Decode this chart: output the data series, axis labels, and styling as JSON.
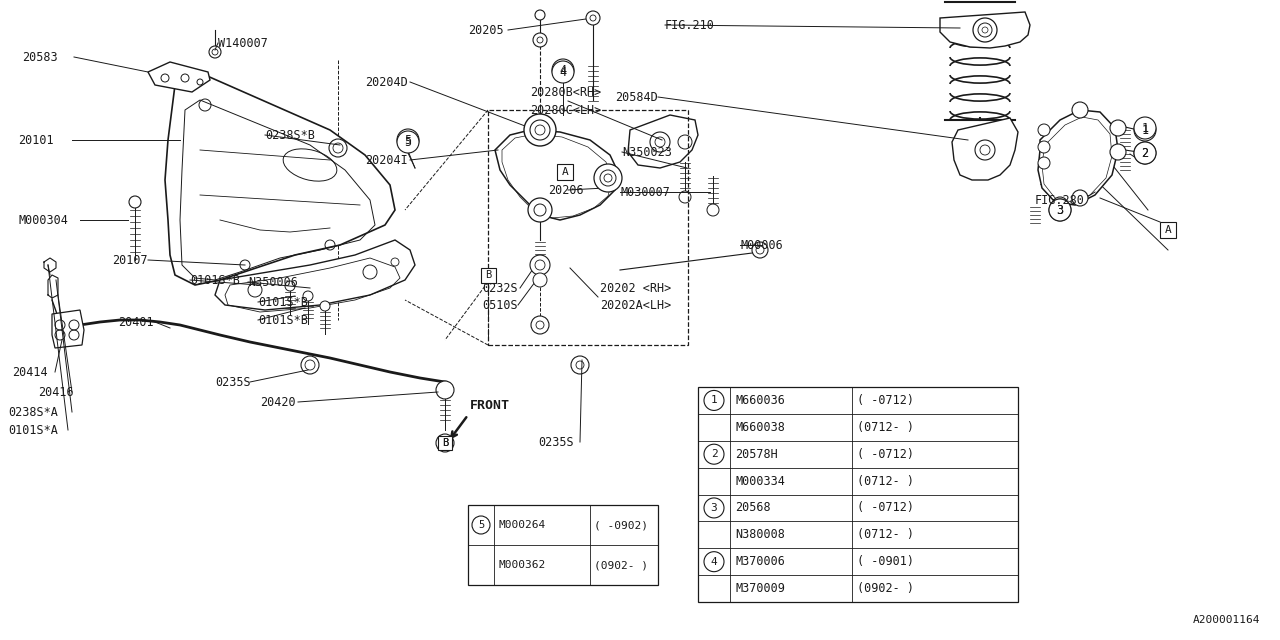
{
  "bg_color": "#ffffff",
  "line_color": "#1a1a1a",
  "fig_width": 12.8,
  "fig_height": 6.4,
  "watermark": "A200001164",
  "table1_rows": [
    [
      "5",
      "M000264",
      "( -0902)"
    ],
    [
      "",
      "M000362",
      "(0902- )"
    ]
  ],
  "table2_rows": [
    [
      "1",
      "M660036",
      "( -0712)"
    ],
    [
      "",
      "M660038",
      "(0712- )"
    ],
    [
      "2",
      "20578H",
      "( -0712)"
    ],
    [
      "",
      "M000334",
      "(0712- )"
    ],
    [
      "3",
      "20568",
      "( -0712)"
    ],
    [
      "",
      "N380008",
      "(0712- )"
    ],
    [
      "4",
      "M370006",
      "( -0901)"
    ],
    [
      "",
      "M370009",
      "(0902- )"
    ]
  ]
}
